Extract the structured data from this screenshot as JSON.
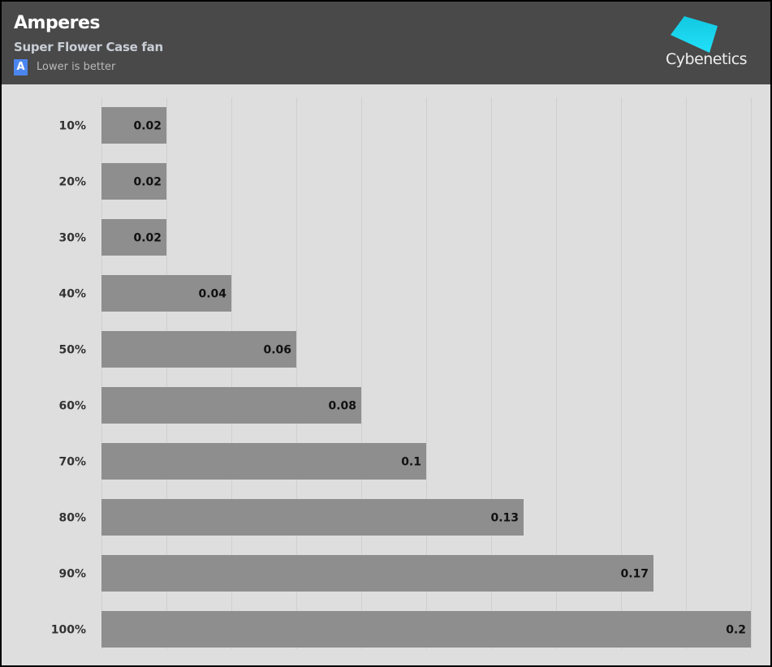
{
  "header": {
    "title": "Amperes",
    "subtitle": "Super Flower Case fan",
    "badge": "A",
    "note": "Lower is better",
    "logo_text": "Cybenetics"
  },
  "colors": {
    "header_bg": "#494949",
    "plot_bg": "#dedede",
    "bar": "#8e8e8e",
    "badge": "#4b86f0",
    "logo": "#22d3f5"
  },
  "chart_data": {
    "type": "bar",
    "orientation": "horizontal",
    "categories": [
      "10%",
      "20%",
      "30%",
      "40%",
      "50%",
      "60%",
      "70%",
      "80%",
      "90%",
      "100%"
    ],
    "values": [
      0.02,
      0.02,
      0.02,
      0.04,
      0.06,
      0.08,
      0.1,
      0.13,
      0.17,
      0.2
    ],
    "value_labels": [
      "0.02",
      "0.02",
      "0.02",
      "0.04",
      "0.06",
      "0.08",
      "0.1",
      "0.13",
      "0.17",
      "0.2"
    ],
    "xlim": [
      0,
      0.2
    ],
    "grid_step": 0.02,
    "grid": true,
    "legend": "none"
  }
}
